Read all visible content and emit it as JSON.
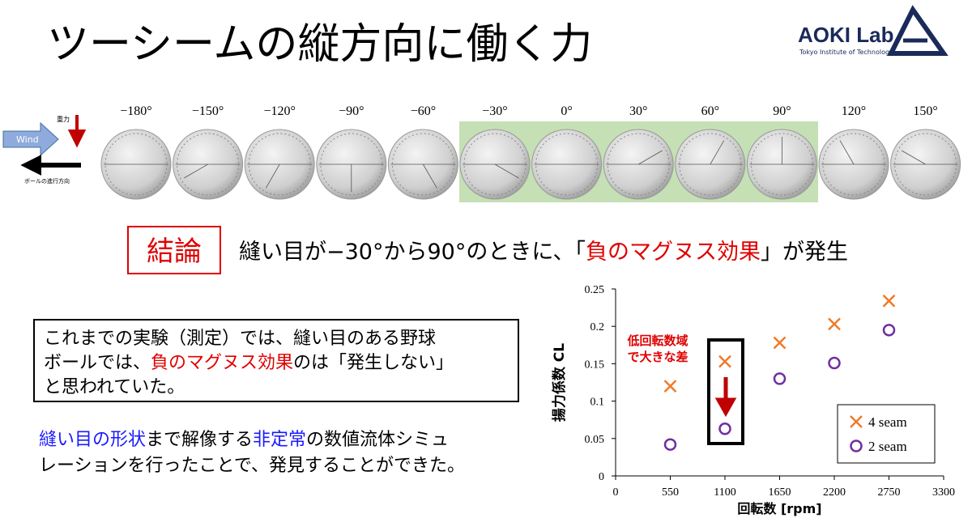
{
  "title": "ツーシームの縦方向に働く力",
  "logo": {
    "name": "AOKI Lab.",
    "subtitle": "Tokyo Institute of Technology"
  },
  "diagram": {
    "wind": "Wind",
    "gravity": "重力",
    "ball_direction": "ボールの進行方向",
    "angles": [
      "−180°",
      "−150°",
      "−120°",
      "−90°",
      "−60°",
      "−30°",
      "0°",
      "30°",
      "60°",
      "90°",
      "120°",
      "150°"
    ]
  },
  "conclusion": {
    "label": "結論",
    "segments": [
      {
        "text": "縫い目が−30°から90°のときに、「",
        "color": "#000000"
      },
      {
        "text": "負のマグヌス効果",
        "color": "#e00000"
      },
      {
        "text": "」が発生",
        "color": "#000000"
      }
    ]
  },
  "box_text": [
    [
      {
        "text": "これまでの実験（測定）では、縫い目のある野球",
        "color": "#000000"
      }
    ],
    [
      {
        "text": "ボールでは、",
        "color": "#000000"
      },
      {
        "text": "負のマグヌス効果",
        "color": "#e00000"
      },
      {
        "text": "のは「発生しない」",
        "color": "#000000"
      }
    ],
    [
      {
        "text": "と思われていた。",
        "color": "#000000"
      }
    ]
  ],
  "note_text": [
    [
      {
        "text": "縫い目の形状",
        "color": "#1a1aff"
      },
      {
        "text": "まで解像する",
        "color": "#000000"
      },
      {
        "text": "非定常",
        "color": "#1a1aff"
      },
      {
        "text": "の数値流体シミュ",
        "color": "#000000"
      }
    ],
    [
      {
        "text": "レーションを行ったことで、発見することができた。",
        "color": "#000000"
      }
    ]
  ],
  "chart_data": {
    "type": "scatter",
    "x_label": "回転数 [rpm]",
    "y_label": "揚力係数 CL",
    "annotation": [
      "低回転数域",
      "で大きな差"
    ],
    "xlim": [
      0,
      3300
    ],
    "xticks": [
      0,
      550,
      1100,
      1650,
      2200,
      2750,
      3300
    ],
    "ylim": [
      0,
      0.25
    ],
    "yticks": [
      0,
      0.05,
      0.1,
      0.15,
      0.2,
      0.25
    ],
    "legend": "lower right",
    "series": [
      {
        "name": "4 seam",
        "color": "#f07a28",
        "marker": "x",
        "x": [
          550,
          1100,
          1650,
          2200,
          2750
        ],
        "values": [
          0.12,
          0.153,
          0.178,
          0.203,
          0.234
        ]
      },
      {
        "name": "2 seam",
        "color": "#7030a0",
        "marker": "o",
        "x": [
          550,
          1100,
          1650,
          2200,
          2750
        ],
        "values": [
          0.042,
          0.063,
          0.13,
          0.151,
          0.195
        ]
      }
    ]
  }
}
